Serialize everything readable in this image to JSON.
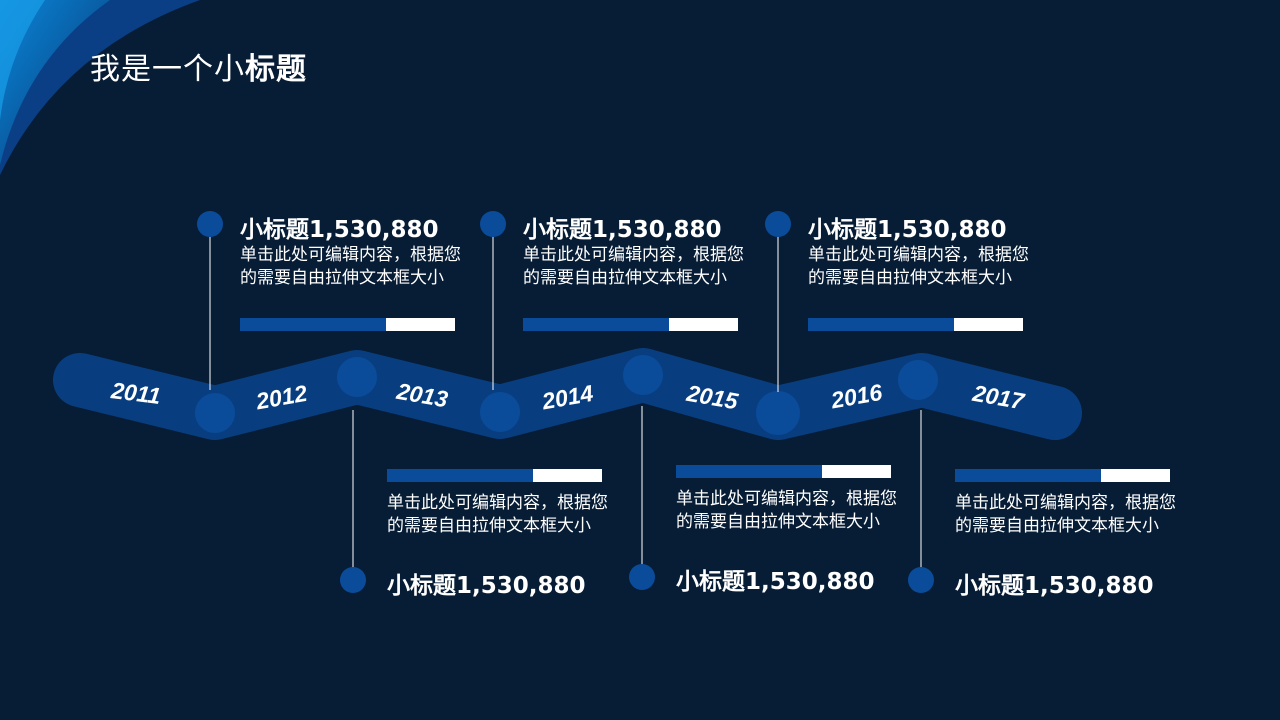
{
  "page": {
    "title_regular": "我是一个小",
    "title_bold": "标题"
  },
  "colors": {
    "background": "#071d36",
    "ribbon": "#083e80",
    "node": "#0a4c9a",
    "text": "#ffffff"
  },
  "timeline": {
    "years": [
      "2011",
      "2012",
      "2013",
      "2014",
      "2015",
      "2016",
      "2017"
    ],
    "milestones": [
      {
        "heading": "小标题1,530,880",
        "text": "单击此处可编辑内容，根据您的需要自由拉伸文本框大小",
        "progress": 0.68,
        "position": "above"
      },
      {
        "heading": "小标题1,530,880",
        "text": "单击此处可编辑内容，根据您的需要自由拉伸文本框大小",
        "progress": 0.68,
        "position": "below"
      },
      {
        "heading": "小标题1,530,880",
        "text": "单击此处可编辑内容，根据您的需要自由拉伸文本框大小",
        "progress": 0.68,
        "position": "above"
      },
      {
        "heading": "小标题1,530,880",
        "text": "单击此处可编辑内容，根据您的需要自由拉伸文本框大小",
        "progress": 0.68,
        "position": "below"
      },
      {
        "heading": "小标题1,530,880",
        "text": "单击此处可编辑内容，根据您的需要自由拉伸文本框大小",
        "progress": 0.68,
        "position": "above"
      },
      {
        "heading": "小标题1,530,880",
        "text": "单击此处可编辑内容，根据您的需要自由拉伸文本框大小",
        "progress": 0.68,
        "position": "below"
      }
    ]
  }
}
